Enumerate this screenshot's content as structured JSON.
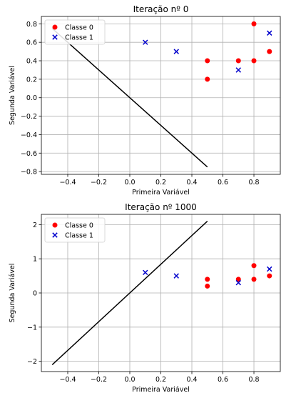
{
  "chart_data": [
    {
      "type": "scatter",
      "title": "Iteração nº 0",
      "xlabel": "Primeira Variável",
      "ylabel": "Segunda Variável",
      "xlim": [
        -0.57,
        0.97
      ],
      "ylim": [
        -0.83,
        0.88
      ],
      "xticks": [
        -0.4,
        -0.2,
        0.0,
        0.2,
        0.4,
        0.6,
        0.8
      ],
      "xtick_labels": [
        "−0.4",
        "−0.2",
        "0.0",
        "0.2",
        "0.4",
        "0.6",
        "0.8"
      ],
      "yticks": [
        -0.8,
        -0.6,
        -0.4,
        -0.2,
        0.0,
        0.2,
        0.4,
        0.6,
        0.8
      ],
      "ytick_labels": [
        "−0.8",
        "−0.6",
        "−0.4",
        "−0.2",
        "0.0",
        "0.2",
        "0.4",
        "0.6",
        "0.8"
      ],
      "grid": true,
      "legend_position": "top-left",
      "series": [
        {
          "name": "Classe 0",
          "marker": "circle",
          "color": "#ff0000",
          "points": [
            [
              0.5,
              0.4
            ],
            [
              0.5,
              0.2
            ],
            [
              0.7,
              0.4
            ],
            [
              0.8,
              0.4
            ],
            [
              0.8,
              0.8
            ],
            [
              0.9,
              0.5
            ]
          ]
        },
        {
          "name": "Classe 1",
          "marker": "x",
          "color": "#0000cc",
          "points": [
            [
              0.1,
              0.6
            ],
            [
              0.3,
              0.5
            ],
            [
              0.7,
              0.3
            ],
            [
              0.9,
              0.7
            ]
          ]
        }
      ],
      "decision_line": {
        "color": "#000000",
        "points": [
          [
            -0.5,
            0.75
          ],
          [
            0.5,
            -0.75
          ]
        ]
      }
    },
    {
      "type": "scatter",
      "title": "Iteração nº 1000",
      "xlabel": "Primeira Variável",
      "ylabel": "Segunda Variável",
      "xlim": [
        -0.57,
        0.97
      ],
      "ylim": [
        -2.3,
        2.3
      ],
      "xticks": [
        -0.4,
        -0.2,
        0.0,
        0.2,
        0.4,
        0.6,
        0.8
      ],
      "xtick_labels": [
        "−0.4",
        "−0.2",
        "0.0",
        "0.2",
        "0.4",
        "0.6",
        "0.8"
      ],
      "yticks": [
        -2,
        -1,
        0,
        1,
        2
      ],
      "ytick_labels": [
        "−2",
        "−1",
        "0",
        "1",
        "2"
      ],
      "grid": true,
      "legend_position": "top-left",
      "series": [
        {
          "name": "Classe 0",
          "marker": "circle",
          "color": "#ff0000",
          "points": [
            [
              0.5,
              0.4
            ],
            [
              0.5,
              0.2
            ],
            [
              0.7,
              0.4
            ],
            [
              0.8,
              0.4
            ],
            [
              0.8,
              0.8
            ],
            [
              0.9,
              0.5
            ]
          ]
        },
        {
          "name": "Classe 1",
          "marker": "x",
          "color": "#0000cc",
          "points": [
            [
              0.1,
              0.6
            ],
            [
              0.3,
              0.5
            ],
            [
              0.7,
              0.3
            ],
            [
              0.9,
              0.7
            ]
          ]
        }
      ],
      "decision_line": {
        "color": "#000000",
        "points": [
          [
            -0.5,
            -2.1
          ],
          [
            0.5,
            2.1
          ]
        ]
      }
    }
  ]
}
